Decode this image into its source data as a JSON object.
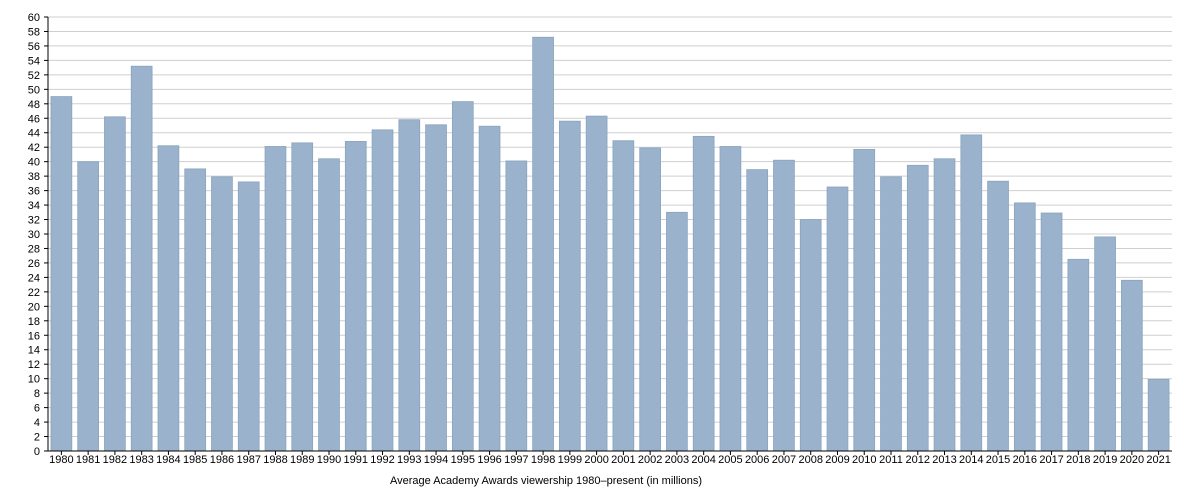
{
  "chart_data": {
    "type": "bar",
    "title": "",
    "xlabel": "Average Academy Awards viewership 1980–present (in millions)",
    "ylabel": "",
    "ylim": [
      0,
      60
    ],
    "ytick_step": 2,
    "grid": true,
    "legend": "none",
    "categories": [
      "1980",
      "1981",
      "1982",
      "1983",
      "1984",
      "1985",
      "1986",
      "1987",
      "1988",
      "1989",
      "1990",
      "1991",
      "1992",
      "1993",
      "1994",
      "1995",
      "1996",
      "1997",
      "1998",
      "1999",
      "2000",
      "2001",
      "2002",
      "2003",
      "2004",
      "2005",
      "2006",
      "2007",
      "2008",
      "2009",
      "2010",
      "2011",
      "2012",
      "2013",
      "2014",
      "2015",
      "2016",
      "2017",
      "2018",
      "2019",
      "2020",
      "2021"
    ],
    "series": [
      {
        "values": [
          49.0,
          40.0,
          46.2,
          53.2,
          42.2,
          39.0,
          37.9,
          37.2,
          42.1,
          42.6,
          40.4,
          42.8,
          44.4,
          45.8,
          45.1,
          48.3,
          44.9,
          40.1,
          57.2,
          45.6,
          46.3,
          42.9,
          41.9,
          33.0,
          43.5,
          42.1,
          38.9,
          40.2,
          32.0,
          36.5,
          41.7,
          37.9,
          39.5,
          40.4,
          43.7,
          37.3,
          34.3,
          32.9,
          26.5,
          29.6,
          23.6,
          9.9
        ],
        "color": "#9ab2cb"
      }
    ],
    "colors": {
      "bar": "#9ab2cb",
      "bar_edge": "#8aa4bf",
      "grid": "#cfcfcf",
      "axis": "#000000"
    }
  }
}
